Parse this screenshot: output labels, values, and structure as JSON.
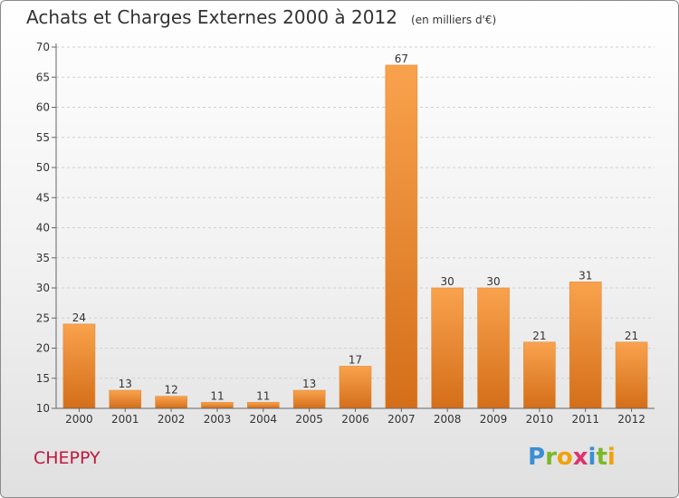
{
  "header": {
    "title": "Achats et Charges Externes 2000 à 2012",
    "unit": "(en milliers d'€)"
  },
  "footer": {
    "city": "CHEPPY",
    "logo_letters": [
      "P",
      "r",
      "o",
      "x",
      "i",
      "t",
      "i"
    ],
    "logo_colors": [
      "#3a8fd4",
      "#7ab829",
      "#f0a20c",
      "#e03070",
      "#3a8fd4",
      "#7ab829",
      "#f0a20c"
    ]
  },
  "colors": {
    "bar_light": "#f9a24d",
    "bar_dark": "#d46e19",
    "grid": "#cfcfcf",
    "axis": "#666666"
  },
  "chart_data": {
    "type": "bar",
    "categories": [
      "2000",
      "2001",
      "2002",
      "2003",
      "2004",
      "2005",
      "2006",
      "2007",
      "2008",
      "2009",
      "2010",
      "2011",
      "2012"
    ],
    "values": [
      24,
      13,
      12,
      11,
      11,
      13,
      17,
      67,
      30,
      30,
      21,
      31,
      21
    ],
    "title": "Achats et Charges Externes 2000 à 2012",
    "ylim": [
      10,
      70
    ],
    "yticks": [
      10,
      15,
      20,
      25,
      30,
      35,
      40,
      45,
      50,
      55,
      60,
      65,
      70
    ],
    "grid": "horizontal-dashed"
  }
}
